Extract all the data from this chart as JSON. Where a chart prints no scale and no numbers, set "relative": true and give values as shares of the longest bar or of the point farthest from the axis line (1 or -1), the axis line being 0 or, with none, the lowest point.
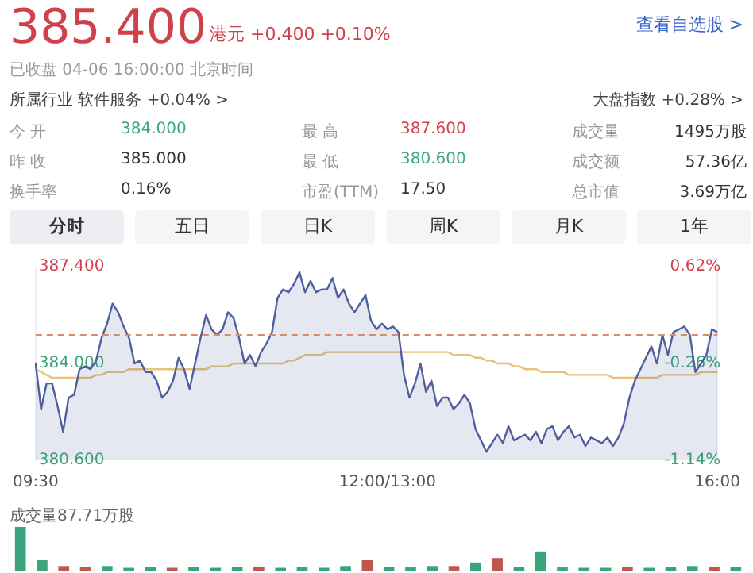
{
  "chart_data": [
    {
      "type": "other",
      "title": "385.400",
      "subtitle": "港元 +0.400 +0.10%",
      "annotations": [
        "已收盘 04-06 16:00:00 北京时间",
        "所属行业 软件服务 +0.04% >",
        "大盘指数 +0.28% >",
        "查看自选股 >",
        "今 开",
        "384.000",
        "最 高",
        "387.600",
        "成交量",
        "1495万股",
        "昨 收",
        "385.000",
        "最 低",
        "380.600",
        "成交额",
        "57.36亿",
        "换手率",
        "0.16%",
        "市盈(TTM)",
        "17.50",
        "总市值",
        "3.69万亿",
        "分时",
        "五日",
        "日K",
        "周K",
        "月K",
        "1年"
      ]
    },
    {
      "type": "line",
      "categories": [
        "09:30",
        null,
        null,
        null,
        null,
        null,
        null,
        null,
        null,
        null,
        null,
        null,
        null,
        null,
        null,
        null,
        null,
        null,
        null,
        null,
        null,
        null,
        null,
        null,
        null,
        null,
        null,
        null,
        null,
        null,
        null,
        null,
        null,
        null,
        null,
        null,
        null,
        null,
        null,
        null,
        null,
        null,
        null,
        null,
        null,
        null,
        null,
        null,
        null,
        null,
        null,
        null,
        null,
        null,
        null,
        null,
        null,
        null,
        null,
        null,
        null,
        null,
        null,
        null,
        "12:00/13:00",
        null,
        null,
        null,
        null,
        null,
        null,
        null,
        null,
        null,
        null,
        null,
        null,
        null,
        null,
        null,
        null,
        null,
        null,
        null,
        null,
        null,
        null,
        null,
        null,
        null,
        null,
        null,
        null,
        null,
        null,
        null,
        null,
        null,
        null,
        null,
        null,
        null,
        null,
        null,
        null,
        null,
        null,
        null,
        null,
        null,
        null,
        null,
        null,
        null,
        null,
        null,
        null,
        null,
        null,
        null,
        null,
        null,
        null,
        null,
        "16:00"
      ],
      "ylim": [
        380.6,
        387.4
      ],
      "yticks": [
        {
          "value": 387.4,
          "label": "387.400"
        },
        {
          "value": 384,
          "label": "384.000"
        },
        {
          "value": 380.6,
          "label": "380.600"
        }
      ],
      "y2lim": [
        -1.14,
        0.62
      ],
      "y2ticks": [
        {
          "value": 0.62,
          "label": "0.62%"
        },
        {
          "value": -0.26,
          "label": "-0.26%"
        },
        {
          "value": -1.14,
          "label": "-1.14%"
        }
      ],
      "ref_lines": [
        {
          "axis": "y",
          "value": 385,
          "color": "#d98c6a",
          "line_style": "dashed"
        }
      ],
      "series": [
        {
          "type": "area",
          "color": "#4f5f9e",
          "values": [
            384.0,
            382.4,
            383.3,
            383.3,
            382.5,
            381.6,
            382.8,
            382.9,
            383.8,
            383.9,
            383.8,
            384.1,
            384.9,
            385.4,
            386.1,
            385.8,
            385.3,
            384.9,
            384.0,
            384.1,
            383.7,
            383.7,
            383.4,
            382.8,
            383.0,
            383.4,
            384.2,
            383.8,
            383.1,
            384.0,
            384.9,
            385.7,
            385.2,
            385.0,
            385.2,
            385.8,
            385.6,
            384.9,
            384.0,
            384.3,
            383.9,
            384.4,
            384.7,
            385.1,
            386.3,
            386.6,
            386.5,
            386.8,
            387.2,
            386.5,
            386.9,
            386.5,
            386.6,
            386.6,
            387.0,
            386.3,
            386.6,
            386.1,
            385.8,
            386.1,
            386.4,
            385.5,
            385.2,
            385.4,
            385.2,
            385.3,
            385.1,
            383.6,
            382.8,
            383.3,
            384.0,
            383.0,
            383.4,
            382.5,
            382.8,
            382.8,
            382.4,
            382.6,
            382.9,
            382.6,
            381.7,
            381.3,
            380.9,
            381.2,
            381.5,
            381.2,
            381.8,
            381.3,
            381.4,
            381.5,
            381.3,
            381.6,
            381.2,
            381.7,
            381.8,
            381.3,
            381.6,
            381.8,
            381.4,
            381.5,
            381.1,
            381.4,
            381.3,
            381.2,
            381.4,
            381.1,
            381.4,
            381.9,
            382.8,
            383.4,
            383.8,
            384.2,
            384.6,
            384.0,
            385.0,
            384.3,
            385.1,
            385.2,
            385.3,
            385.0,
            383.7,
            384.0,
            384.3,
            385.2,
            385.1
          ]
        },
        {
          "type": "line",
          "color": "#e6c27a",
          "values": [
            383.8,
            383.7,
            383.6,
            383.5,
            383.5,
            383.5,
            383.5,
            383.5,
            383.5,
            383.5,
            383.5,
            383.6,
            383.6,
            383.7,
            383.7,
            383.7,
            383.7,
            383.8,
            383.8,
            383.8,
            383.8,
            383.8,
            383.8,
            383.8,
            383.8,
            383.8,
            383.8,
            383.8,
            383.8,
            383.8,
            383.8,
            383.8,
            383.9,
            383.9,
            383.9,
            383.9,
            384.0,
            384.0,
            384.0,
            384.0,
            384.0,
            384.0,
            384.0,
            384.0,
            384.0,
            384.0,
            384.1,
            384.1,
            384.2,
            384.3,
            384.3,
            384.3,
            384.3,
            384.4,
            384.4,
            384.4,
            384.4,
            384.4,
            384.4,
            384.4,
            384.4,
            384.4,
            384.4,
            384.4,
            384.4,
            384.4,
            384.4,
            384.4,
            384.4,
            384.4,
            384.4,
            384.4,
            384.4,
            384.4,
            384.4,
            384.4,
            384.3,
            384.3,
            384.3,
            384.3,
            384.2,
            384.2,
            384.1,
            384.1,
            384.0,
            384.0,
            384.0,
            383.9,
            383.9,
            383.8,
            383.8,
            383.8,
            383.7,
            383.7,
            383.7,
            383.7,
            383.7,
            383.6,
            383.6,
            383.6,
            383.6,
            383.6,
            383.6,
            383.6,
            383.6,
            383.5,
            383.5,
            383.5,
            383.5,
            383.5,
            383.5,
            383.5,
            383.5,
            383.5,
            383.6,
            383.6,
            383.6,
            383.6,
            383.6,
            383.6,
            383.6,
            383.7,
            383.7,
            383.7,
            383.7
          ]
        }
      ]
    },
    {
      "type": "bar",
      "title": "成交量87.71万股",
      "relative": true,
      "categories": [
        null,
        null,
        null,
        null,
        null,
        null,
        null,
        null,
        null,
        null,
        null,
        null,
        null,
        null,
        null,
        null,
        null,
        null,
        null,
        null,
        null,
        null,
        null,
        null,
        null,
        null,
        null,
        null,
        null,
        null,
        null,
        null,
        null,
        null
      ],
      "values": [
        1,
        0.25,
        0.12,
        0.1,
        0.12,
        0.08,
        0.1,
        0.08,
        0.1,
        0.08,
        0.1,
        0.1,
        0.08,
        0.1,
        0.08,
        0.12,
        0.25,
        0.1,
        0.1,
        0.12,
        0.12,
        0.2,
        0.3,
        0.1,
        0.45,
        0.1,
        0.08,
        0.08,
        0.1,
        0.08,
        0.1,
        0.12,
        0.1,
        0.1
      ],
      "colors": [
        "#3aa57c",
        "#3aa57c",
        "#c0574f",
        "#c0574f",
        "#3aa57c",
        "#3aa57c",
        "#3aa57c",
        "#c0574f",
        "#3aa57c",
        "#3aa57c",
        "#3aa57c",
        "#c0574f",
        "#3aa57c",
        "#3aa57c",
        "#3aa57c",
        "#3aa57c",
        "#c0574f",
        "#3aa57c",
        "#3aa57c",
        "#3aa57c",
        "#c0574f",
        "#3aa57c",
        "#c0574f",
        "#3aa57c",
        "#3aa57c",
        "#3aa57c",
        "#3aa57c",
        "#3aa57c",
        "#c0574f",
        "#3aa57c",
        "#3aa57c",
        "#3aa57c",
        "#c0574f",
        "#3aa57c"
      ]
    }
  ]
}
